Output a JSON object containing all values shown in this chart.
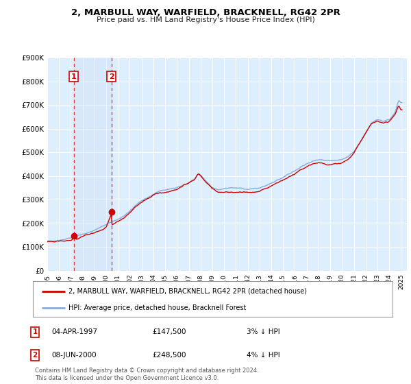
{
  "title": "2, MARBULL WAY, WARFIELD, BRACKNELL, RG42 2PR",
  "subtitle": "Price paid vs. HM Land Registry's House Price Index (HPI)",
  "ylim": [
    0,
    900000
  ],
  "yticks": [
    0,
    100000,
    200000,
    300000,
    400000,
    500000,
    600000,
    700000,
    800000,
    900000
  ],
  "ytick_labels": [
    "£0",
    "£100K",
    "£200K",
    "£300K",
    "£400K",
    "£500K",
    "£600K",
    "£700K",
    "£800K",
    "£900K"
  ],
  "xlim_start": 1995.0,
  "xlim_end": 2025.5,
  "sale1_x": 1997.25,
  "sale1_y": 147500,
  "sale1_label": "1",
  "sale1_date": "04-APR-1997",
  "sale1_price": "£147,500",
  "sale1_hpi": "3% ↓ HPI",
  "sale2_x": 2000.44,
  "sale2_y": 248500,
  "sale2_label": "2",
  "sale2_date": "08-JUN-2000",
  "sale2_price": "£248,500",
  "sale2_hpi": "4% ↓ HPI",
  "line_color_red": "#cc0000",
  "line_color_blue": "#88aadd",
  "background_chart": "#ddeeff",
  "grid_color": "#ffffff",
  "legend_label_red": "2, MARBULL WAY, WARFIELD, BRACKNELL, RG42 2PR (detached house)",
  "legend_label_blue": "HPI: Average price, detached house, Bracknell Forest",
  "footer": "Contains HM Land Registry data © Crown copyright and database right 2024.\nThis data is licensed under the Open Government Licence v3.0."
}
